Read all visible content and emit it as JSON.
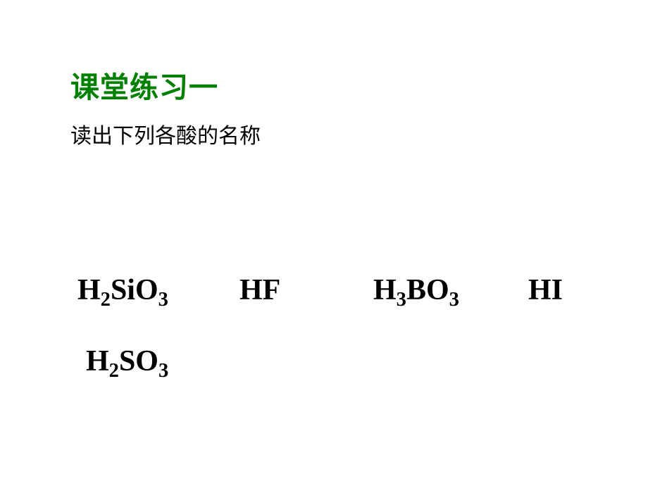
{
  "slide": {
    "title": "课堂练习一",
    "title_color": "#008000",
    "subtitle": "读出下列各酸的名称",
    "subtitle_color": "#000000",
    "background_color": "#ffffff",
    "formulas_color": "#000000",
    "formulas_fontsize": 42,
    "title_fontsize": 42,
    "subtitle_fontsize": 30,
    "formulas": {
      "row1": [
        {
          "base": "H",
          "sub1": "2",
          "mid": "SiO",
          "sub2": "3"
        },
        {
          "base": "HF"
        },
        {
          "base": "H",
          "sub1": "3",
          "mid": "BO",
          "sub2": "3"
        },
        {
          "base": "HI"
        }
      ],
      "row2": [
        {
          "base": "H",
          "sub1": "2",
          "mid": "SO",
          "sub2": "3"
        }
      ]
    }
  }
}
